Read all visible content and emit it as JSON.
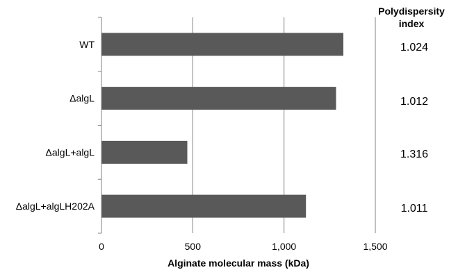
{
  "chart_data": {
    "type": "bar",
    "orientation": "horizontal",
    "categories": [
      "WT",
      "ΔalgL",
      "ΔalgL+algL",
      "ΔalgL+algLH202A"
    ],
    "values": [
      1325,
      1285,
      470,
      1120
    ],
    "xlabel": "Alginate molecular mass (kDa)",
    "ylabel": "",
    "xlim": [
      0,
      1500
    ],
    "xticks": [
      0,
      500,
      1000,
      1500
    ],
    "xtick_labels": [
      "0",
      "500",
      "1,000",
      "1,500"
    ],
    "grid": "vertical",
    "bar_color": "#595959"
  },
  "side_table": {
    "title_line1": "Polydispersity",
    "title_line2": "index",
    "values": [
      "1.024",
      "1.012",
      "1.316",
      "1.011"
    ]
  }
}
